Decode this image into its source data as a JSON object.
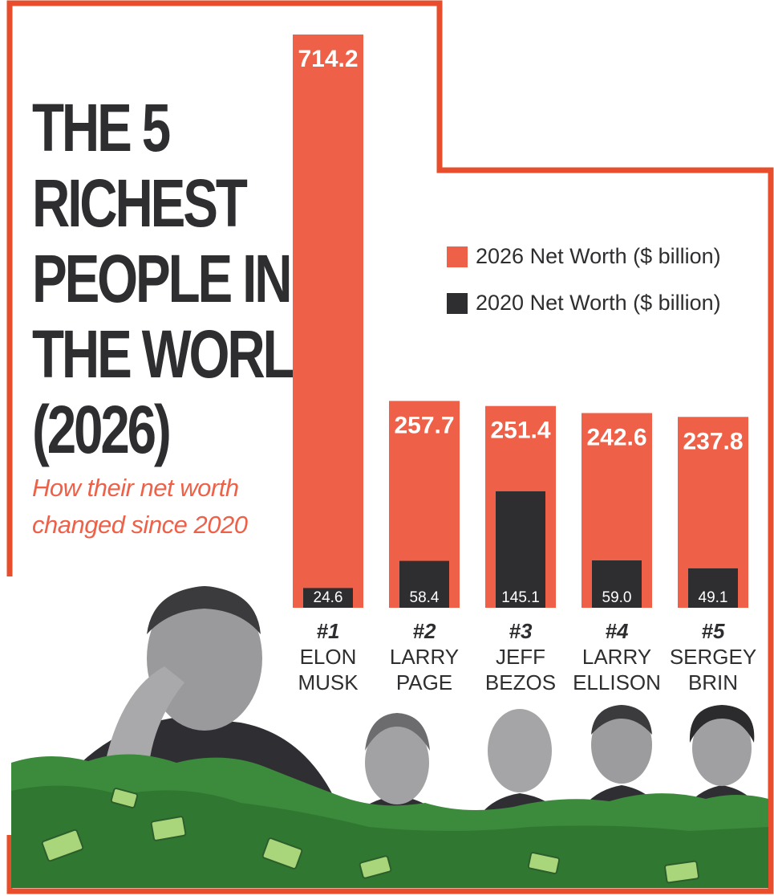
{
  "title_lines": [
    "THE 5",
    "RICHEST",
    "PEOPLE IN",
    "THE WORLD",
    "(2026)"
  ],
  "subtitle": "How their net worth changed since 2020",
  "colors": {
    "accent": "#ee6148",
    "dark": "#2e2e31",
    "frame": "#e84e2b",
    "money": "#3c8a3c"
  },
  "chart_data": {
    "type": "bar",
    "categories": [
      "#1 ELON MUSK",
      "#2 LARRY PAGE",
      "#3 JEFF BEZOS",
      "#4 LARRY ELLISON",
      "#5 SERGEY BRIN"
    ],
    "series": [
      {
        "name": "2026 Net Worth ($ billion)",
        "values": [
          714.2,
          257.7,
          251.4,
          242.6,
          237.8
        ],
        "color": "#ee6148"
      },
      {
        "name": "2020 Net Worth ($ billion)",
        "values": [
          24.6,
          58.4,
          145.1,
          59.0,
          49.1
        ],
        "color": "#2e2e31"
      }
    ],
    "legend_position": "top-right",
    "grid": false
  },
  "people": [
    {
      "rank": "#1",
      "name": "ELON\nMUSK"
    },
    {
      "rank": "#2",
      "name": "LARRY\nPAGE"
    },
    {
      "rank": "#3",
      "name": "JEFF\nBEZOS"
    },
    {
      "rank": "#4",
      "name": "LARRY\nELLISON"
    },
    {
      "rank": "#5",
      "name": "SERGEY\nBRIN"
    }
  ],
  "portrait_icons": [
    "person-saluting-icon",
    "person-portrait-icon",
    "person-portrait-icon",
    "person-portrait-icon",
    "person-portrait-icon"
  ]
}
